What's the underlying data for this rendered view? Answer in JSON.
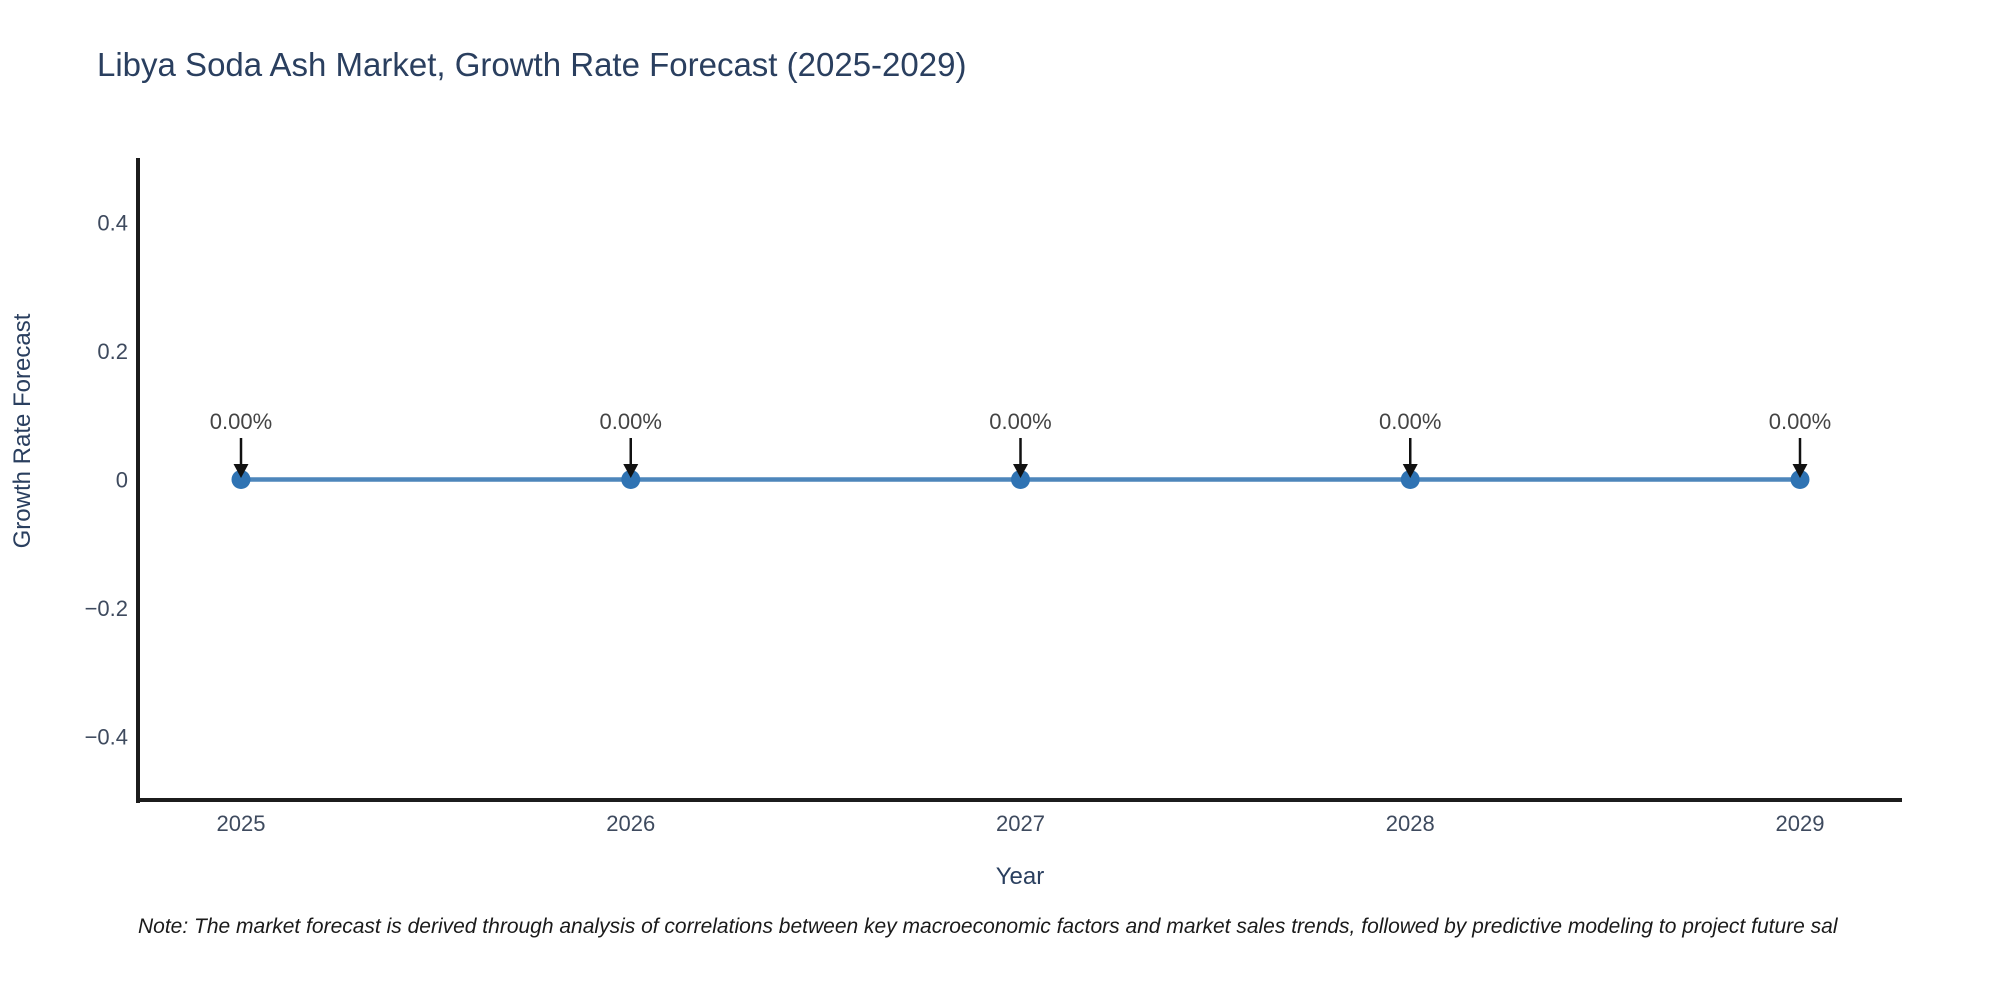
{
  "title": "Libya Soda Ash Market, Growth Rate Forecast (2025-2029)",
  "note": "Note: The market forecast is derived through analysis of correlations between key macroeconomic factors and market sales trends, followed by predictive modeling to project future sal",
  "colors": {
    "title_text": "#2a3f5f",
    "axis_title_text": "#2a3f5f",
    "tick_text": "#3e4a5e",
    "annotation_text": "#444444",
    "axis_line": "#1c1c1c",
    "arrow": "#111111",
    "line": "#4d86bb",
    "marker": "#2f73b3",
    "background": "#ffffff"
  },
  "chart_data": {
    "type": "line",
    "title": "Libya Soda Ash Market, Growth Rate Forecast (2025-2029)",
    "xlabel": "Year",
    "ylabel": "Growth Rate Forecast",
    "categories": [
      "2025",
      "2026",
      "2027",
      "2028",
      "2029"
    ],
    "values": [
      0,
      0,
      0,
      0,
      0
    ],
    "point_labels": [
      "0.00%",
      "0.00%",
      "0.00%",
      "0.00%",
      "0.00%"
    ],
    "yticks": [
      0.4,
      0.2,
      0,
      -0.2,
      -0.4
    ],
    "ytick_labels": [
      "0.4",
      "0.2",
      "0",
      "−0.2",
      "−0.4"
    ],
    "ylim": [
      -0.5,
      0.5
    ],
    "grid": false,
    "legend": false,
    "annotation_style": "down-arrow-to-point"
  }
}
